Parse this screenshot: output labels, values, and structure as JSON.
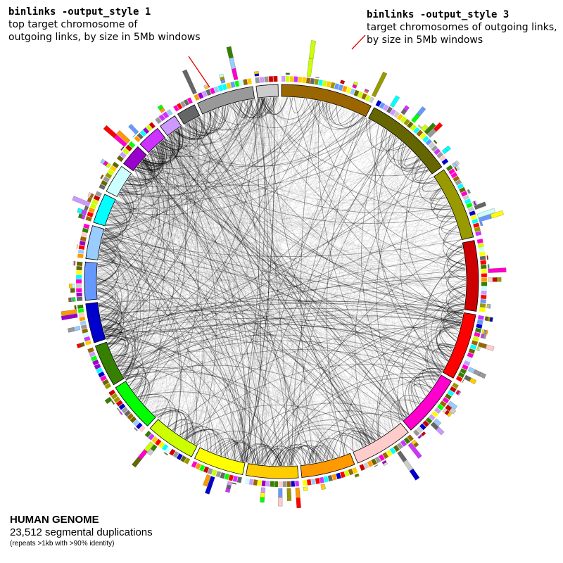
{
  "annotations": {
    "left": {
      "command": "binlinks -output_style 1",
      "lines": [
        "top target chromosome of",
        "outgoing links, by size in 5Mb windows"
      ]
    },
    "right": {
      "command": "binlinks -output_style 3",
      "lines": [
        "target chromosomes of outgoing links,",
        "by size in 5Mb windows"
      ]
    }
  },
  "caption": {
    "title": "HUMAN GENOME",
    "subtitle": "23,512 segmental duplications",
    "note": "(repeats >1kb with >90% identity)"
  },
  "colors": {
    "link": "#000000",
    "pointer": "#e00000",
    "ideogram_outline": "#000000"
  },
  "ideogram": {
    "chromosomes": [
      {
        "id": "chr1",
        "size": 249,
        "color": "#996600"
      },
      {
        "id": "chr2",
        "size": 243,
        "color": "#666600"
      },
      {
        "id": "chr3",
        "size": 198,
        "color": "#999900"
      },
      {
        "id": "chr4",
        "size": 191,
        "color": "#cc0000"
      },
      {
        "id": "chr5",
        "size": 181,
        "color": "#ff0000"
      },
      {
        "id": "chr6",
        "size": 171,
        "color": "#ff00cc"
      },
      {
        "id": "chr7",
        "size": 159,
        "color": "#ffcccc"
      },
      {
        "id": "chr8",
        "size": 146,
        "color": "#ff9900"
      },
      {
        "id": "chr9",
        "size": 141,
        "color": "#ffcc00"
      },
      {
        "id": "chr10",
        "size": 136,
        "color": "#ffff00"
      },
      {
        "id": "chr11",
        "size": 135,
        "color": "#ccff00"
      },
      {
        "id": "chr12",
        "size": 134,
        "color": "#00ff00"
      },
      {
        "id": "chr13",
        "size": 115,
        "color": "#358000"
      },
      {
        "id": "chr14",
        "size": 107,
        "color": "#0000cc"
      },
      {
        "id": "chr15",
        "size": 103,
        "color": "#6699ff"
      },
      {
        "id": "chr16",
        "size": 90,
        "color": "#99ccff"
      },
      {
        "id": "chr17",
        "size": 81,
        "color": "#00ffff"
      },
      {
        "id": "chr18",
        "size": 78,
        "color": "#ccffff"
      },
      {
        "id": "chr19",
        "size": 59,
        "color": "#9900cc"
      },
      {
        "id": "chr20",
        "size": 63,
        "color": "#cc33ff"
      },
      {
        "id": "chr21",
        "size": 48,
        "color": "#cc99ff"
      },
      {
        "id": "chr22",
        "size": 51,
        "color": "#666666"
      },
      {
        "id": "chrX",
        "size": 155,
        "color": "#999999"
      },
      {
        "id": "chrY",
        "size": 59,
        "color": "#cccccc"
      }
    ]
  }
}
